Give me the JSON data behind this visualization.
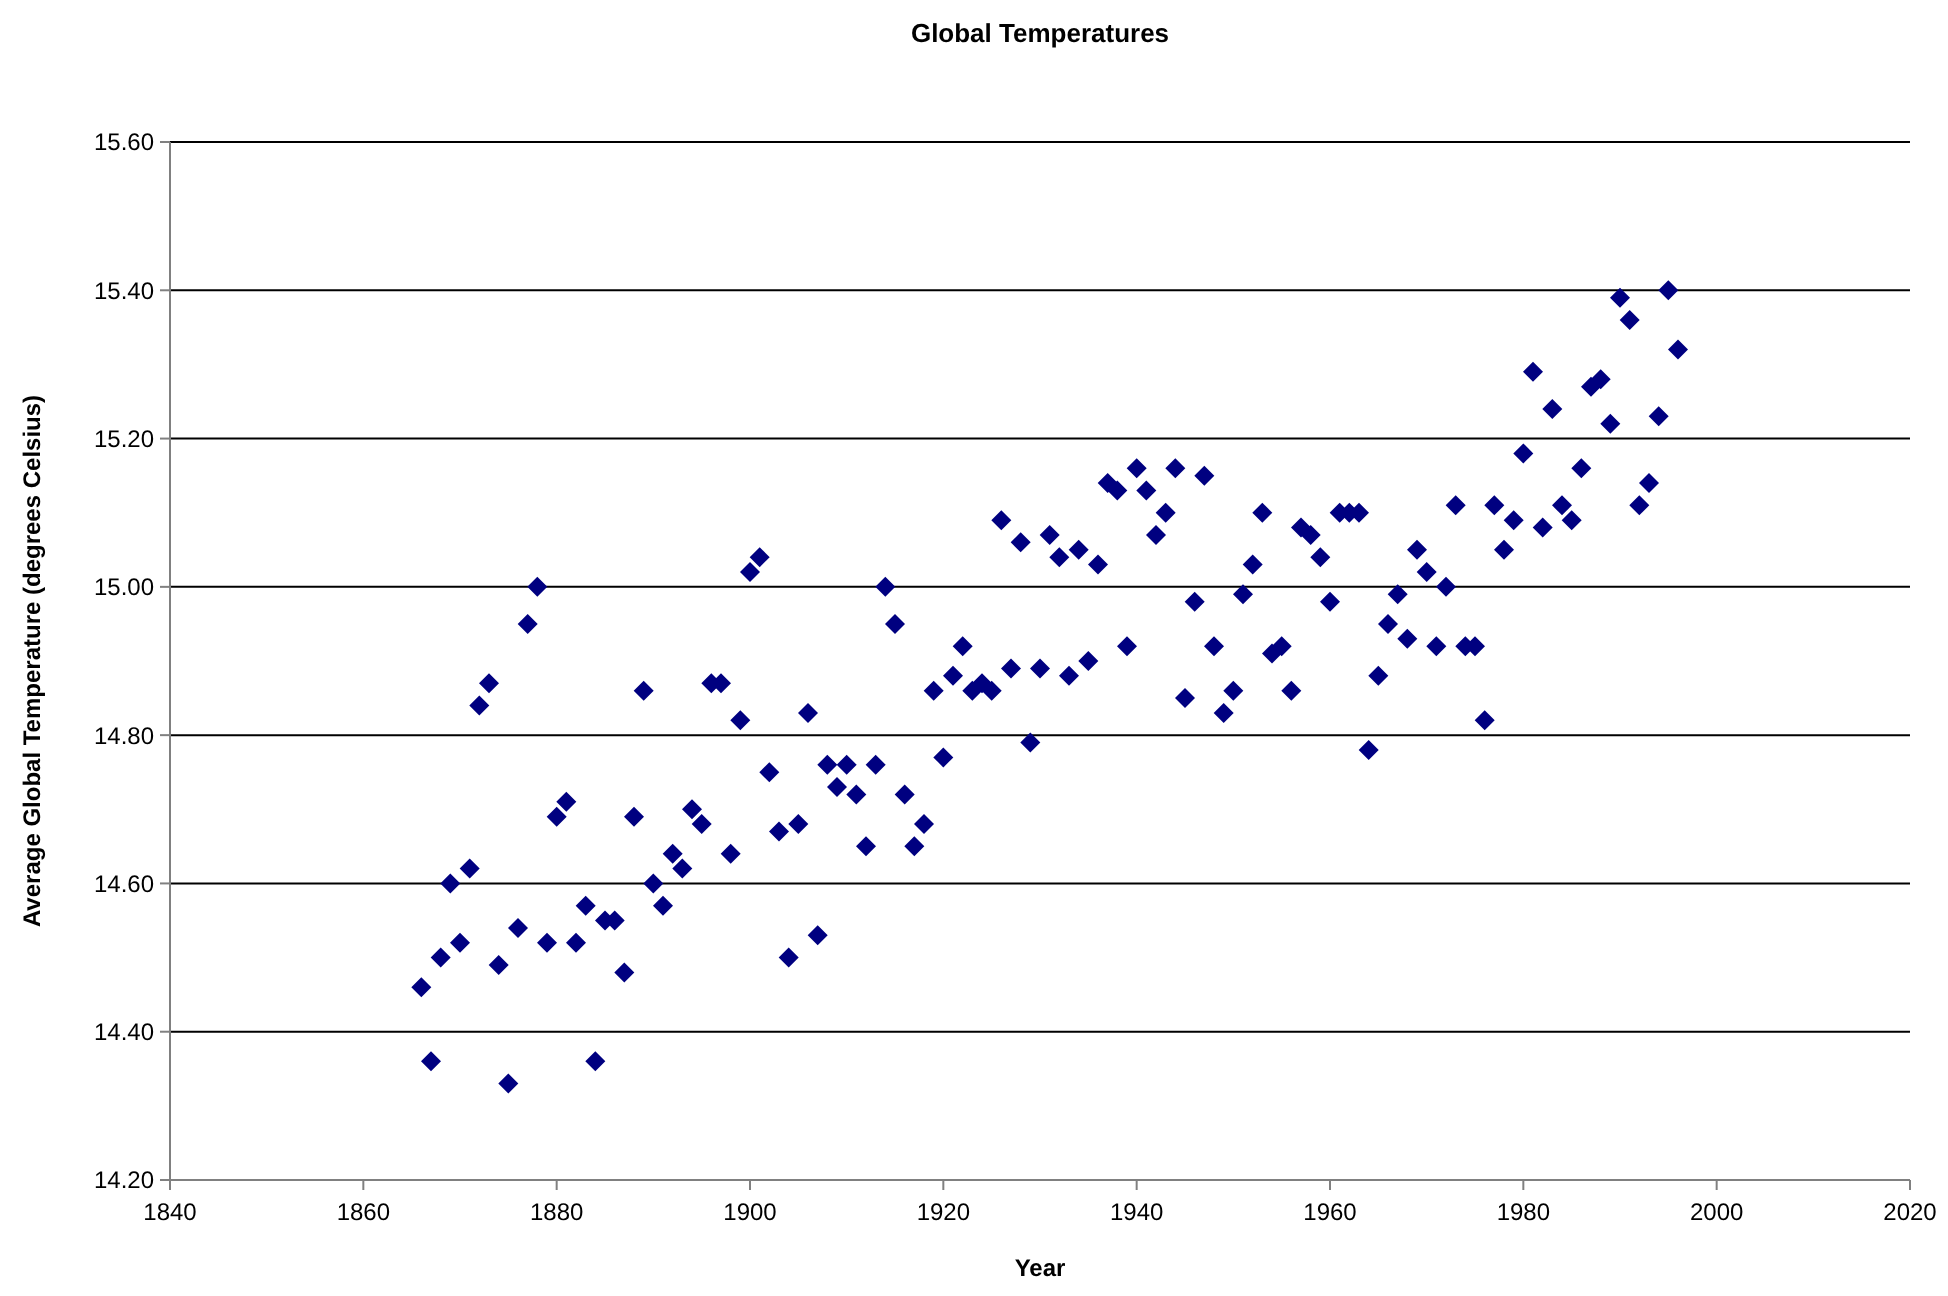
{
  "chart_data": {
    "type": "scatter",
    "title": "Global Temperatures",
    "xlabel": "Year",
    "ylabel": "Average Global Temperature (degrees Celsius)",
    "x": [
      1866,
      1867,
      1868,
      1869,
      1870,
      1871,
      1872,
      1873,
      1874,
      1875,
      1876,
      1877,
      1878,
      1879,
      1880,
      1881,
      1882,
      1883,
      1884,
      1885,
      1886,
      1887,
      1888,
      1889,
      1890,
      1891,
      1892,
      1893,
      1894,
      1895,
      1896,
      1897,
      1898,
      1899,
      1900,
      1901,
      1902,
      1903,
      1904,
      1905,
      1906,
      1907,
      1908,
      1909,
      1910,
      1911,
      1912,
      1913,
      1914,
      1915,
      1916,
      1917,
      1918,
      1919,
      1920,
      1921,
      1922,
      1923,
      1924,
      1925,
      1926,
      1927,
      1928,
      1929,
      1930,
      1931,
      1932,
      1933,
      1934,
      1935,
      1936,
      1937,
      1938,
      1939,
      1940,
      1941,
      1942,
      1943,
      1944,
      1945,
      1946,
      1947,
      1948,
      1949,
      1950,
      1951,
      1952,
      1953,
      1954,
      1955,
      1956,
      1957,
      1958,
      1959,
      1960,
      1961,
      1962,
      1963,
      1964,
      1965,
      1966,
      1967,
      1968,
      1969,
      1970,
      1971,
      1972,
      1973,
      1974,
      1975,
      1976,
      1977,
      1978,
      1979,
      1980,
      1981,
      1982,
      1983,
      1984,
      1985,
      1986,
      1987,
      1988,
      1989,
      1990,
      1991,
      1992,
      1993,
      1994,
      1995,
      1996
    ],
    "series": [
      {
        "color": "#000080",
        "values": [
          14.46,
          14.36,
          14.5,
          14.6,
          14.52,
          14.62,
          14.84,
          14.87,
          14.49,
          14.33,
          14.54,
          14.95,
          15.0,
          14.52,
          14.69,
          14.71,
          14.52,
          14.57,
          14.36,
          14.55,
          14.55,
          14.48,
          14.69,
          14.86,
          14.6,
          14.57,
          14.64,
          14.62,
          14.7,
          14.68,
          14.87,
          14.87,
          14.64,
          14.82,
          15.02,
          15.04,
          14.75,
          14.67,
          14.5,
          14.68,
          14.83,
          14.53,
          14.76,
          14.73,
          14.76,
          14.72,
          14.65,
          14.76,
          15.0,
          14.95,
          14.72,
          14.65,
          14.68,
          14.86,
          14.77,
          14.88,
          14.92,
          14.86,
          14.87,
          14.86,
          15.09,
          14.89,
          15.06,
          14.79,
          14.89,
          15.07,
          15.04,
          14.88,
          15.05,
          14.9,
          15.03,
          15.14,
          15.13,
          14.92,
          15.16,
          15.13,
          15.07,
          15.1,
          15.16,
          14.85,
          14.98,
          15.15,
          14.92,
          14.83,
          14.86,
          14.99,
          15.03,
          15.1,
          14.91,
          14.92,
          14.86,
          15.08,
          15.07,
          15.04,
          14.98,
          15.1,
          15.1,
          15.1,
          14.78,
          14.88,
          14.95,
          14.99,
          14.93,
          15.05,
          15.02,
          14.92,
          15.0,
          15.11,
          14.92,
          14.92,
          14.82,
          15.11,
          15.05,
          15.09,
          15.18,
          15.29,
          15.08,
          15.24,
          15.11,
          15.09,
          15.16,
          15.27,
          15.28,
          15.22,
          15.39,
          15.36,
          15.11,
          15.14,
          15.23,
          15.4,
          15.32
        ]
      }
    ],
    "xlim": [
      1840,
      2020
    ],
    "xticks": [
      1840,
      1860,
      1880,
      1900,
      1920,
      1940,
      1960,
      1980,
      2000,
      2020
    ],
    "ylim": [
      14.2,
      15.6
    ],
    "yticks": [
      {
        "value": 14.2,
        "label": "14.20"
      },
      {
        "value": 14.4,
        "label": "14.40"
      },
      {
        "value": 14.6,
        "label": "14.60"
      },
      {
        "value": 14.8,
        "label": "14.80"
      },
      {
        "value": 15.0,
        "label": "15.00"
      },
      {
        "value": 15.2,
        "label": "15.20"
      },
      {
        "value": 15.4,
        "label": "15.40"
      },
      {
        "value": 15.6,
        "label": "15.60"
      }
    ],
    "grid": "y",
    "marker": "diamond"
  }
}
